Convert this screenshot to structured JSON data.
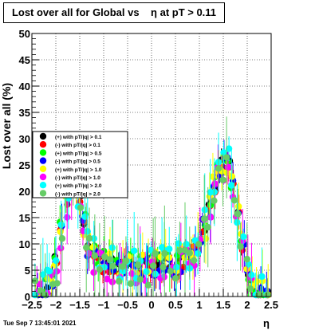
{
  "chart_data": {
    "type": "scatter",
    "title": "Lost over all for Global vs    η at pT > 0.11",
    "xlabel": "η",
    "ylabel": "Lost over all (%)",
    "xlim": [
      -2.5,
      2.5
    ],
    "ylim": [
      0,
      50
    ],
    "x_ticks": [
      "−2.5",
      "−2",
      "−1.5",
      "−1",
      "−0.5",
      "0",
      "0.5",
      "1",
      "1.5",
      "2",
      "2.5"
    ],
    "y_ticks": [
      "0",
      "5",
      "10",
      "15",
      "20",
      "25",
      "30",
      "35",
      "40",
      "45",
      "50"
    ],
    "grid": true,
    "legend_position": "middle-left",
    "timestamp": "Tue Sep  7 13:45:01 2021",
    "series": [
      {
        "name": "(+) with pT/|q| > 0.1",
        "color": "#000000",
        "marker": "circle"
      },
      {
        "name": "(-) with pT/|q| > 0.1",
        "color": "#ff0000",
        "marker": "circle"
      },
      {
        "name": "(+) with pT/|q| > 0.5",
        "color": "#00ff00",
        "marker": "circle"
      },
      {
        "name": "(-) with pT/|q| > 0.5",
        "color": "#0000ff",
        "marker": "circle"
      },
      {
        "name": "(+) with pT/|q| > 1.0",
        "color": "#ffff00",
        "marker": "circle"
      },
      {
        "name": "(-) with pT/|q| > 1.0",
        "color": "#ff00ff",
        "marker": "circle"
      },
      {
        "name": "(+) with pT/|q| > 2.0",
        "color": "#00ffff",
        "marker": "circle"
      },
      {
        "name": "(-) with pT/|q| > 2.0",
        "color": "#66cc66",
        "marker": "circle"
      }
    ],
    "profile": {
      "eta": [
        -2.4,
        -2.3,
        -2.2,
        -2.1,
        -2.0,
        -1.9,
        -1.8,
        -1.7,
        -1.6,
        -1.5,
        -1.4,
        -1.3,
        -1.2,
        -1.1,
        -1.0,
        -0.9,
        -0.8,
        -0.7,
        -0.6,
        -0.5,
        -0.4,
        -0.3,
        -0.2,
        -0.1,
        0.0,
        0.1,
        0.2,
        0.3,
        0.4,
        0.5,
        0.6,
        0.7,
        0.8,
        0.9,
        1.0,
        1.1,
        1.2,
        1.3,
        1.4,
        1.5,
        1.6,
        1.7,
        1.8,
        1.9,
        2.0,
        2.1,
        2.2,
        2.3,
        2.4
      ],
      "lost": [
        0.5,
        1.0,
        2.0,
        4.0,
        7.0,
        13.0,
        19.0,
        22.0,
        23.0,
        19.0,
        14.0,
        10.0,
        8.5,
        7.5,
        7.0,
        6.5,
        6.5,
        6.5,
        6.5,
        6.5,
        6.5,
        6.5,
        6.5,
        6.5,
        6.5,
        6.5,
        6.5,
        6.5,
        6.5,
        6.5,
        7.0,
        7.5,
        8.0,
        9.0,
        11.0,
        13.5,
        17.0,
        21.0,
        24.0,
        26.0,
        25.5,
        22.0,
        16.0,
        10.0,
        5.0,
        2.5,
        1.0,
        0.5,
        0.2
      ]
    }
  }
}
